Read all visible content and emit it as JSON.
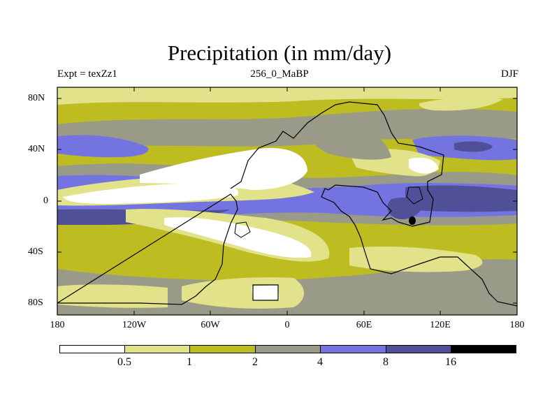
{
  "title": "Precipitation (in mm/day)",
  "subtitle_left": "Expt = texZz1",
  "subtitle_center": "256_0_MaBP",
  "subtitle_right": "DJF",
  "y_ticks": [
    "80N",
    "40N",
    "0",
    "40S",
    "80S"
  ],
  "x_ticks": [
    "180",
    "120W",
    "60W",
    "0",
    "60E",
    "120E",
    "180"
  ],
  "colorbar": {
    "levels": [
      "0.5",
      "1",
      "2",
      "4",
      "8",
      "16"
    ],
    "colors": [
      "#ffffff",
      "#e2e28a",
      "#bdbd22",
      "#9a9a88",
      "#7474e0",
      "#505098",
      "#000000"
    ]
  },
  "colors": {
    "white": "#ffffff",
    "pale_yellow": "#e2e28a",
    "olive": "#bdbd22",
    "gray": "#9a9a88",
    "blue": "#7474e0",
    "dark_blue": "#505098",
    "black": "#000000"
  }
}
